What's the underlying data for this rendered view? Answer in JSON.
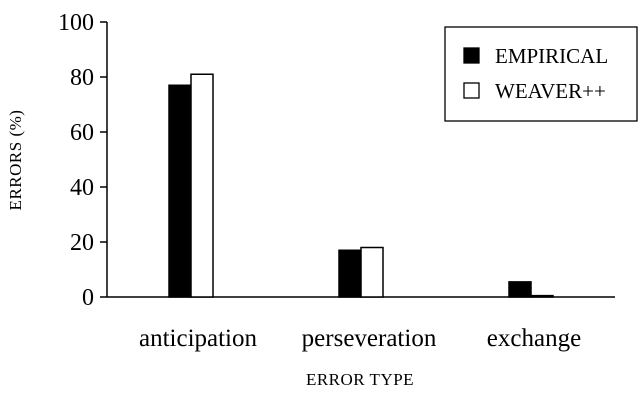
{
  "chart_data": {
    "type": "bar",
    "title": "",
    "xlabel": "ERROR TYPE",
    "ylabel": "ERRORS (%)",
    "ylim": [
      0,
      100
    ],
    "yticks": [
      0,
      20,
      40,
      60,
      80,
      100
    ],
    "categories": [
      "anticipation",
      "perseveration",
      "exchange"
    ],
    "series": [
      {
        "name": "EMPIRICAL",
        "values": [
          77,
          17,
          5.5
        ],
        "fill": "#000000"
      },
      {
        "name": "WEAVER++",
        "values": [
          81,
          18,
          0.5
        ],
        "fill": "#ffffff"
      }
    ],
    "legend_position": "top-right",
    "grid": false
  }
}
